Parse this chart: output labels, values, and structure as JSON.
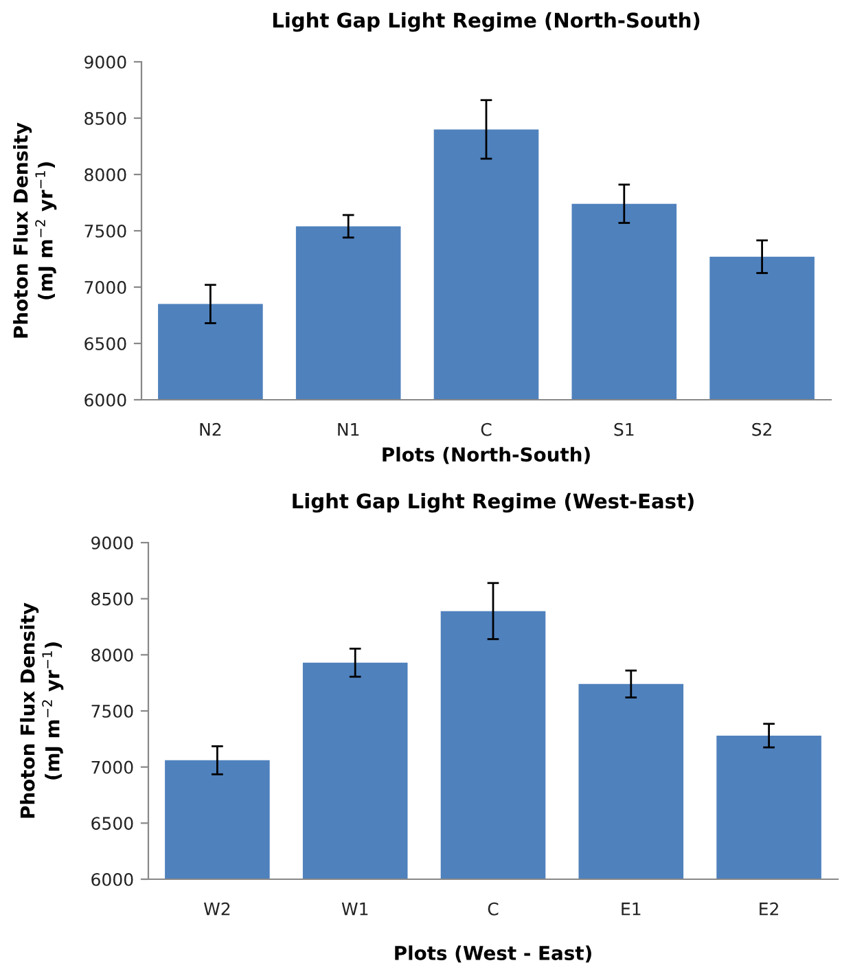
{
  "chart_data": [
    {
      "type": "bar",
      "title": "Light Gap Light Regime (North-South)",
      "xlabel": "Plots (North-South)",
      "ylabel": "Photon Flux Density\n(mJ m$^{−2}$ yr$^{−1}$)",
      "categories": [
        "N2",
        "N1",
        "C",
        "S1",
        "S2"
      ],
      "values": [
        6850,
        7540,
        8400,
        7740,
        7270
      ],
      "errors": [
        170,
        100,
        260,
        170,
        145
      ],
      "color": "#4f81bd",
      "ylim": [
        6000,
        9000
      ],
      "yticks": [
        6000,
        6500,
        7000,
        7500,
        8000,
        8500,
        9000
      ],
      "grid": false
    },
    {
      "type": "bar",
      "title": "Light Gap Light Regime (West-East)",
      "xlabel": "Plots (West - East)",
      "ylabel": "Photon Flux Density\n(mJ m$^{−2}$ yr$^{−1}$)",
      "categories": [
        "W2",
        "W1",
        "C",
        "E1",
        "E2"
      ],
      "values": [
        7060,
        7930,
        8390,
        7740,
        7280
      ],
      "errors": [
        125,
        125,
        250,
        120,
        105
      ],
      "color": "#4f81bd",
      "ylim": [
        6000,
        9000
      ],
      "yticks": [
        6000,
        6500,
        7000,
        7500,
        8000,
        8500,
        9000
      ],
      "grid": false
    }
  ]
}
